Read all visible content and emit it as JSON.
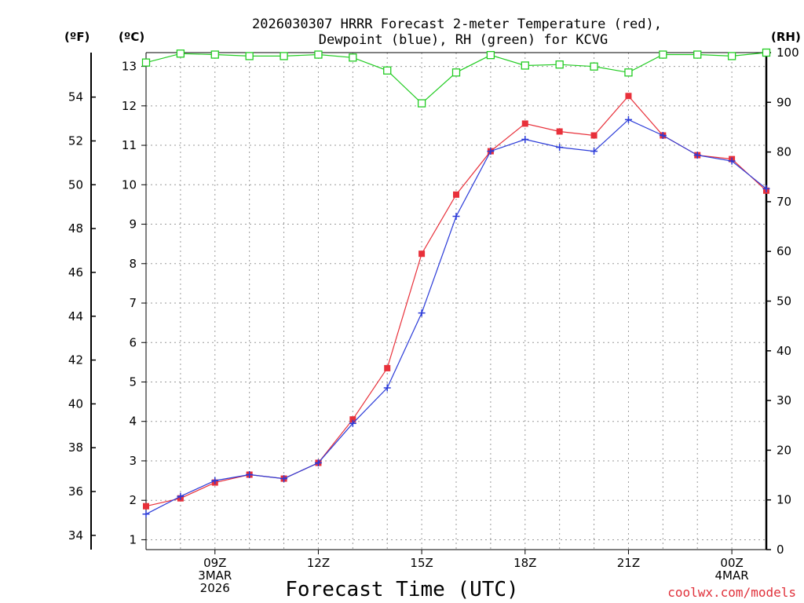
{
  "chart_data": {
    "type": "line",
    "title_lines": [
      "2026030307 HRRR Forecast 2-meter Temperature (red),",
      "Dewpoint (blue), RH (green) for KCVG"
    ],
    "xlabel": "Forecast Time (UTC)",
    "credit": "coolwx.com/models",
    "x": [
      7,
      8,
      9,
      10,
      11,
      12,
      13,
      14,
      15,
      16,
      17,
      18,
      19,
      20,
      21,
      22,
      23,
      24,
      25
    ],
    "xlim": [
      7,
      25
    ],
    "xticks": [
      {
        "x": 9,
        "lines": [
          "09Z",
          "3MAR",
          "2026"
        ]
      },
      {
        "x": 12,
        "lines": [
          "12Z"
        ]
      },
      {
        "x": 15,
        "lines": [
          "15Z"
        ]
      },
      {
        "x": 18,
        "lines": [
          "18Z"
        ]
      },
      {
        "x": 21,
        "lines": [
          "21Z"
        ]
      },
      {
        "x": 24,
        "lines": [
          "00Z",
          "4MAR"
        ]
      }
    ],
    "axes": {
      "celsius": {
        "label": "(ºC)",
        "ylim": [
          0.75,
          13.35
        ],
        "ticks": [
          1,
          2,
          3,
          4,
          5,
          6,
          7,
          8,
          9,
          10,
          11,
          12,
          13
        ]
      },
      "fahrenheit": {
        "label": "(ºF)",
        "ticks": [
          34,
          36,
          38,
          40,
          42,
          44,
          46,
          48,
          50,
          52,
          54
        ]
      },
      "rh": {
        "label": "(RH)",
        "ylim": [
          0,
          100
        ],
        "ticks": [
          0,
          10,
          20,
          30,
          40,
          50,
          60,
          70,
          80,
          90,
          100
        ]
      }
    },
    "series": [
      {
        "name": "Temperature",
        "unit": "C",
        "color": "#e8303a",
        "marker": "filled-square",
        "values": [
          1.85,
          2.05,
          2.45,
          2.65,
          2.55,
          2.95,
          4.05,
          5.35,
          8.25,
          9.75,
          10.85,
          11.55,
          11.35,
          11.25,
          12.25,
          11.25,
          10.75,
          10.65,
          9.85
        ]
      },
      {
        "name": "Dewpoint",
        "unit": "C",
        "color": "#2b3bd8",
        "marker": "plus",
        "values": [
          1.65,
          2.1,
          2.5,
          2.65,
          2.55,
          2.95,
          3.95,
          4.85,
          6.75,
          9.2,
          10.85,
          11.15,
          10.95,
          10.85,
          11.65,
          11.25,
          10.75,
          10.6,
          9.9
        ]
      },
      {
        "name": "RH",
        "unit": "%",
        "color": "#22cc22",
        "marker": "open-square",
        "values": [
          98,
          99.8,
          99.6,
          99.3,
          99.3,
          99.6,
          99,
          96.4,
          89.8,
          96,
          99.5,
          97.4,
          97.6,
          97.2,
          96,
          99.6,
          99.6,
          99.3,
          100
        ]
      }
    ]
  }
}
